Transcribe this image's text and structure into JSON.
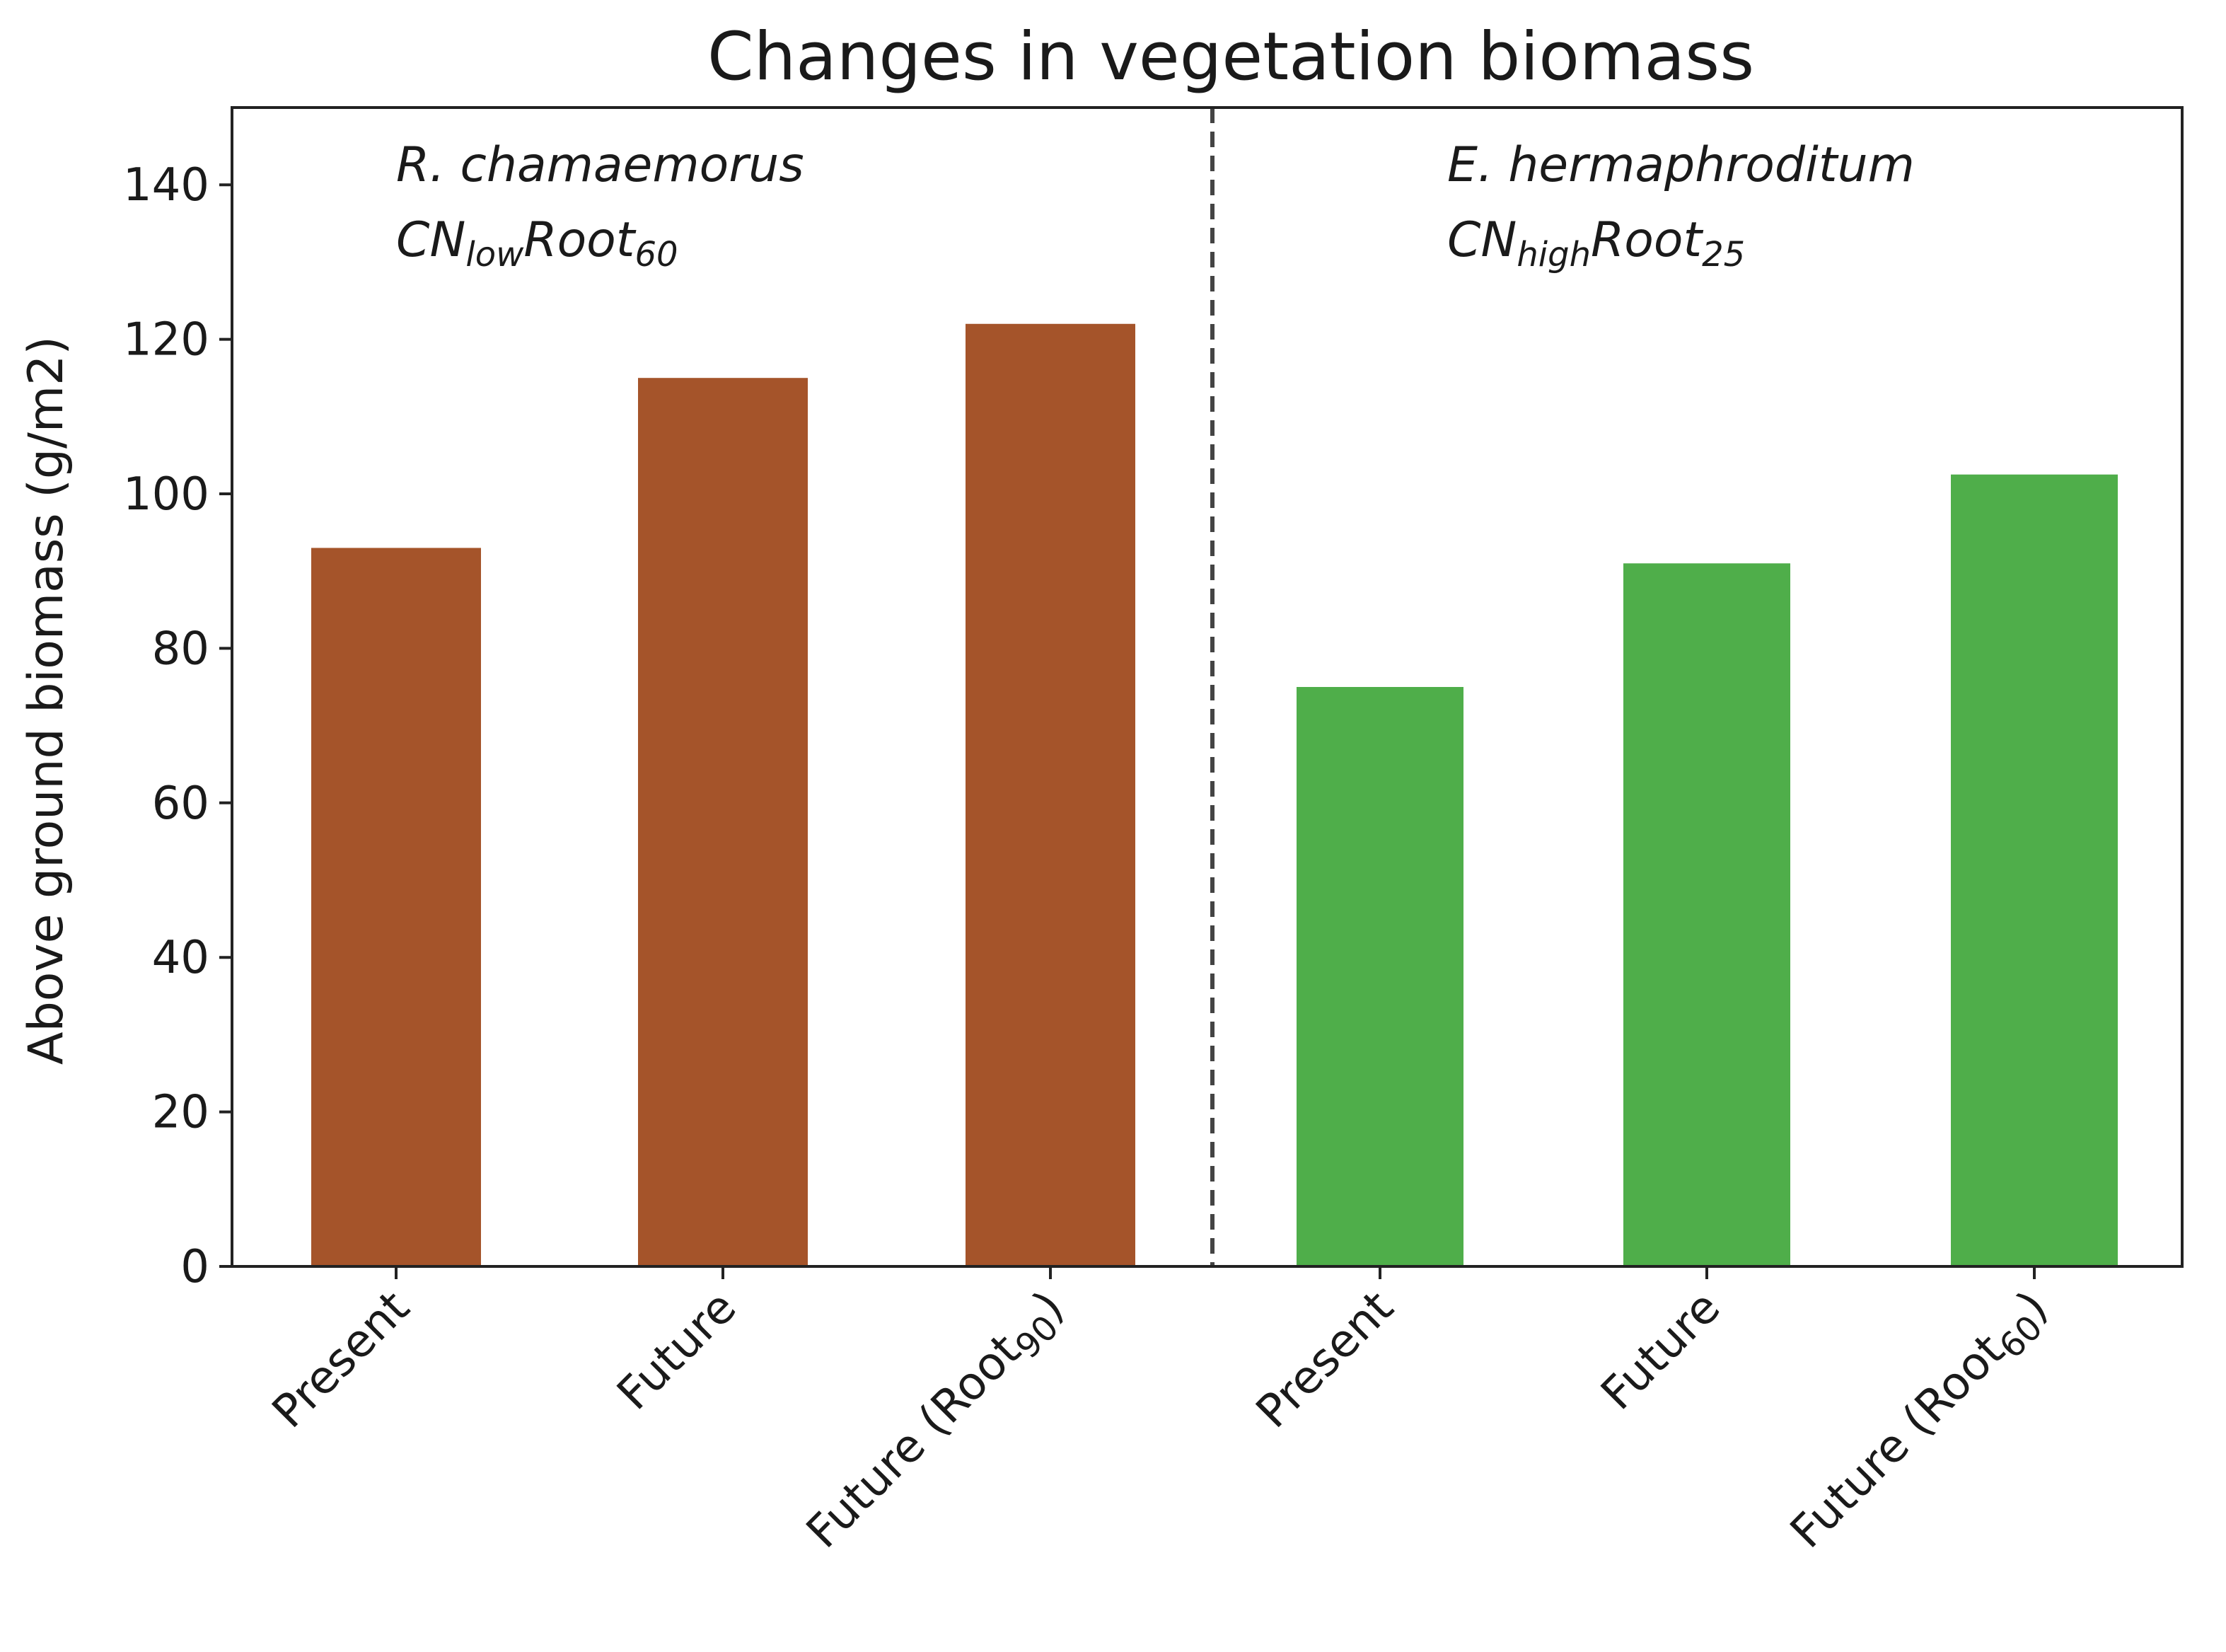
{
  "chart_data": {
    "type": "bar",
    "title": "Changes in vegetation biomass",
    "xlabel": "",
    "ylabel": "Above ground biomass (g/m2)",
    "ylim": [
      0,
      150
    ],
    "yticks": [
      0,
      20,
      40,
      60,
      80,
      100,
      120,
      140
    ],
    "grid": false,
    "groups": [
      {
        "species": "R. chamaemorus",
        "config_base": "CN",
        "config_sub1": "low",
        "config_mid": "Root",
        "config_sub2": "60",
        "color": "#a5542a",
        "bars": [
          {
            "label": "Present",
            "label_sub": "",
            "label_tail": "",
            "value": 93
          },
          {
            "label": "Future",
            "label_sub": "",
            "label_tail": "",
            "value": 115
          },
          {
            "label": "Future (Root",
            "label_sub": "90",
            "label_tail": ")",
            "value": 122
          }
        ]
      },
      {
        "species": "E. hermaphroditum",
        "config_base": "CN",
        "config_sub1": "high",
        "config_mid": "Root",
        "config_sub2": "25",
        "color": "#4fae4a",
        "bars": [
          {
            "label": "Present",
            "label_sub": "",
            "label_tail": "",
            "value": 75
          },
          {
            "label": "Future",
            "label_sub": "",
            "label_tail": "",
            "value": 91
          },
          {
            "label": "Future (Root",
            "label_sub": "60",
            "label_tail": ")",
            "value": 102.5
          }
        ]
      }
    ],
    "divider": "dashed vertical line between groups"
  }
}
